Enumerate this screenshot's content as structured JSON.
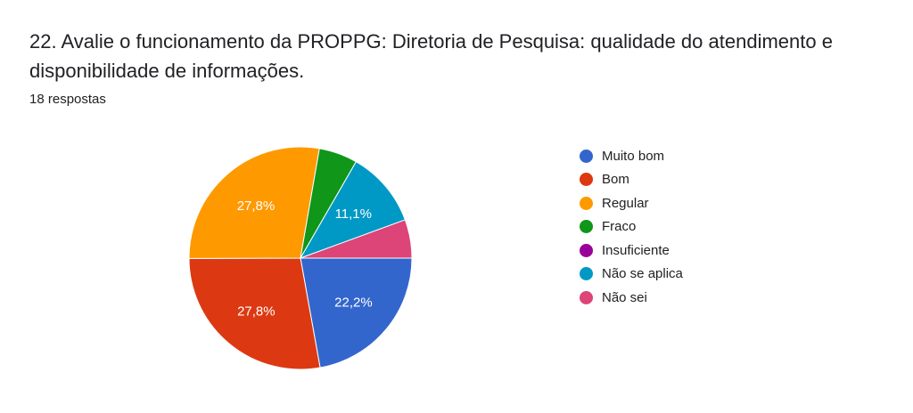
{
  "question": {
    "title": "22. Avalie o funcionamento da PROPPG: Diretoria de Pesquisa: qualidade do atendimento e disponibilidade de informações.",
    "responses": "18 respostas"
  },
  "chart_data": {
    "type": "pie",
    "title": "",
    "categories": [
      "Muito bom",
      "Bom",
      "Regular",
      "Fraco",
      "Insuficiente",
      "Não se aplica",
      "Não sei"
    ],
    "values": [
      22.2,
      27.8,
      27.8,
      5.6,
      0,
      11.1,
      5.6
    ],
    "labels": [
      "22,2%",
      "27,8%",
      "27,8%",
      "",
      "",
      "11,1%",
      ""
    ],
    "colors": [
      "#3366cc",
      "#dc3912",
      "#ff9900",
      "#109618",
      "#990099",
      "#0099c6",
      "#dd4477"
    ],
    "legend_position": "right"
  }
}
